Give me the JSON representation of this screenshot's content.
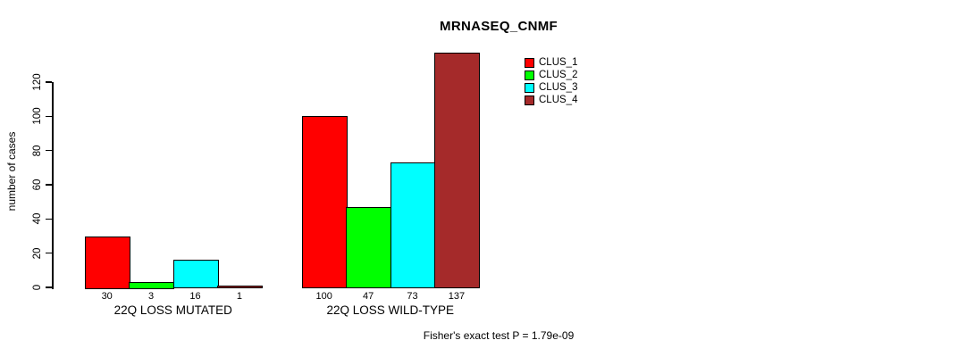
{
  "chart_data": {
    "type": "bar",
    "title": "MRNASEQ_CNMF",
    "ylabel": "number of cases",
    "xlabel": "",
    "ylim": [
      0,
      120
    ],
    "yticks": [
      0,
      20,
      40,
      60,
      80,
      100,
      120
    ],
    "categories": [
      "22Q LOSS MUTATED",
      "22Q LOSS WILD-TYPE"
    ],
    "series": [
      {
        "name": "CLUS_1",
        "color": "#FF0000",
        "values": [
          30,
          100
        ]
      },
      {
        "name": "CLUS_2",
        "color": "#00FF00",
        "values": [
          3,
          47
        ]
      },
      {
        "name": "CLUS_3",
        "color": "#00FFFF",
        "values": [
          16,
          73
        ]
      },
      {
        "name": "CLUS_4",
        "color": "#A52A2A",
        "values": [
          1,
          137
        ]
      }
    ],
    "bar_value_labels": {
      "22Q LOSS MUTATED": [
        30,
        3,
        16,
        1
      ],
      "22Q LOSS WILD-TYPE": [
        100,
        47,
        73,
        137
      ]
    },
    "annotation": "Fisher's exact test P = 1.79e-09",
    "legend_position": "top-right",
    "grid": false,
    "background_color": "#FFFFFF",
    "axis_color": "#000000"
  }
}
